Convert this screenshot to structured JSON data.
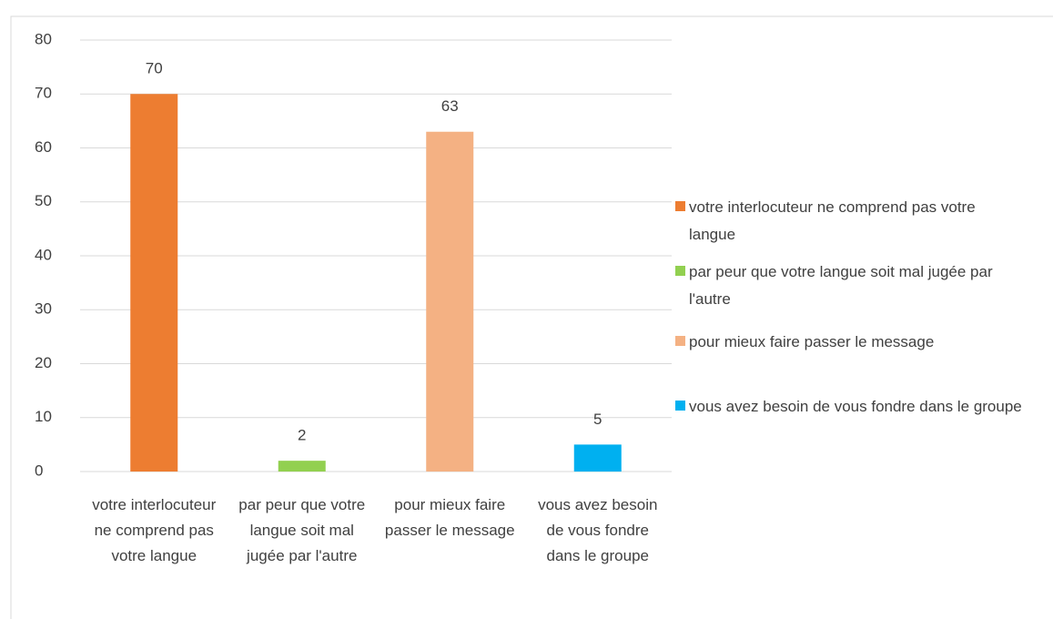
{
  "chart_data": {
    "type": "bar",
    "categories": [
      "votre interlocuteur ne comprend pas votre langue",
      "par peur que votre langue soit mal jugée par l'autre",
      "pour mieux faire passer le message",
      "vous avez besoin de vous fondre dans le groupe"
    ],
    "values": [
      70,
      2,
      63,
      5
    ],
    "colors": [
      "#ed7d31",
      "#92d050",
      "#f4b183",
      "#00b0f0"
    ],
    "ylim": [
      0,
      80
    ],
    "yticks": [
      0,
      10,
      20,
      30,
      40,
      50,
      60,
      70,
      80
    ],
    "grid": true,
    "legend": "right"
  }
}
